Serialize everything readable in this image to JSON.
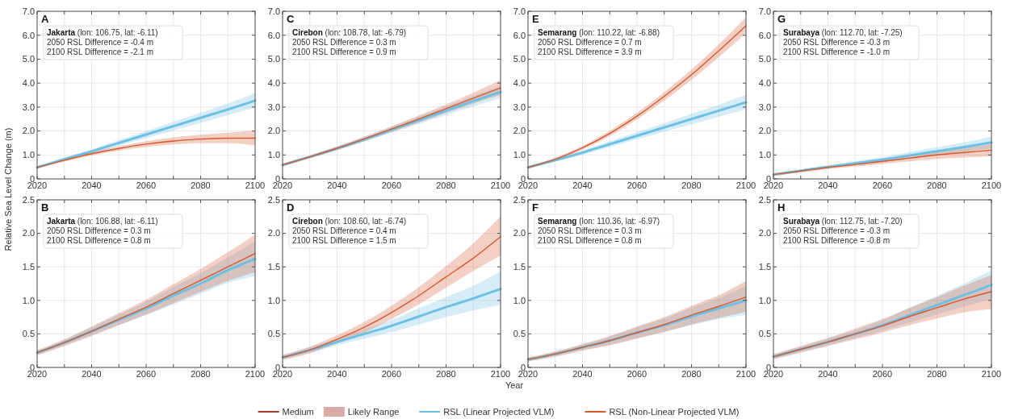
{
  "chart_data": [
    {
      "type": "line",
      "title": "A",
      "ylabel": "Relative Sea Level Change (m)",
      "legend": "bottom",
      "grid": true,
      "line_style": "solid",
      "x": [
        2020,
        2030,
        2040,
        2050,
        2060,
        2070,
        2080,
        2090,
        2100
      ],
      "xlim": [
        2020,
        2100
      ],
      "xticks": [
        2020,
        {
          "value": 2030,
          "label": null
        },
        2040,
        {
          "value": 2050,
          "label": null
        },
        2060,
        {
          "value": 2070,
          "label": null
        },
        2080,
        {
          "value": 2090,
          "label": null
        },
        2100
      ],
      "ylim": [
        0,
        7
      ],
      "yticks": [
        0,
        {
          "value": 1,
          "label": "1.0"
        },
        {
          "value": 2,
          "label": "2.0"
        },
        {
          "value": 3,
          "label": "3.0"
        },
        {
          "value": 4,
          "label": "4.0"
        },
        {
          "value": 5,
          "label": "5.0"
        },
        {
          "value": 6,
          "label": "6.0"
        },
        {
          "value": 7,
          "label": "7.0"
        }
      ],
      "annotations": [
        "Jakarta (lon: 106.75, lat: -6.11)",
        "2050 RSL Difference = -0.4 m",
        "2100 RSL Difference = -2.1 m",
        "Medium",
        "Likely Range"
      ],
      "series": [
        {
          "name": "RSL (Linear Projected VLM)",
          "color": "#6cc0e5",
          "values": [
            0.48,
            0.82,
            1.15,
            1.5,
            1.85,
            2.2,
            2.55,
            2.9,
            3.27
          ],
          "lower": [
            0.44,
            0.75,
            1.06,
            1.38,
            1.7,
            2.02,
            2.34,
            2.66,
            2.98
          ],
          "upper": [
            0.52,
            0.89,
            1.24,
            1.62,
            2.0,
            2.38,
            2.76,
            3.15,
            3.58
          ]
        },
        {
          "name": "RSL (Non-Linear Projected VLM)",
          "color": "#d9572b",
          "values": [
            0.48,
            0.78,
            1.05,
            1.27,
            1.45,
            1.58,
            1.66,
            1.7,
            1.7
          ],
          "lower": [
            0.43,
            0.72,
            0.98,
            1.18,
            1.33,
            1.44,
            1.49,
            1.49,
            1.4
          ],
          "upper": [
            0.53,
            0.84,
            1.12,
            1.36,
            1.57,
            1.73,
            1.84,
            1.93,
            2.02
          ]
        }
      ]
    },
    {
      "type": "line",
      "title": "C",
      "grid": true,
      "line_style": "solid",
      "x": [
        2020,
        2030,
        2040,
        2050,
        2060,
        2070,
        2080,
        2090,
        2100
      ],
      "xlim": [
        2020,
        2100
      ],
      "xticks": [
        2020,
        {
          "value": 2030,
          "label": null
        },
        2040,
        {
          "value": 2050,
          "label": null
        },
        2060,
        {
          "value": 2070,
          "label": null
        },
        2080,
        {
          "value": 2090,
          "label": null
        },
        2100
      ],
      "ylim": [
        0,
        7
      ],
      "yticks": [
        0,
        {
          "value": 1,
          "label": "1.0"
        },
        {
          "value": 2,
          "label": "2.0"
        },
        {
          "value": 3,
          "label": "3.0"
        },
        {
          "value": 4,
          "label": "4.0"
        },
        {
          "value": 5,
          "label": "5.0"
        },
        {
          "value": 6,
          "label": "6.0"
        },
        {
          "value": 7,
          "label": "7.0"
        }
      ],
      "annotations": [
        "Cirebon (lon: 108.78, lat: -6.79)",
        "2050 RSL Difference = 0.3 m",
        "2100 RSL Difference = 0.9 m"
      ],
      "series": [
        {
          "color": "#6cc0e5",
          "values": [
            0.58,
            0.92,
            1.27,
            1.65,
            2.05,
            2.45,
            2.85,
            3.25,
            3.63
          ],
          "lower": [
            0.55,
            0.87,
            1.2,
            1.56,
            1.93,
            2.3,
            2.67,
            3.03,
            3.38
          ],
          "upper": [
            0.61,
            0.97,
            1.34,
            1.74,
            2.17,
            2.6,
            3.03,
            3.47,
            3.88
          ]
        },
        {
          "color": "#d9572b",
          "values": [
            0.58,
            0.92,
            1.28,
            1.67,
            2.08,
            2.5,
            2.93,
            3.37,
            3.8
          ],
          "lower": [
            0.53,
            0.86,
            1.2,
            1.57,
            1.96,
            2.35,
            2.75,
            3.15,
            3.5
          ],
          "upper": [
            0.63,
            0.98,
            1.36,
            1.77,
            2.2,
            2.65,
            3.11,
            3.6,
            4.12
          ]
        }
      ]
    },
    {
      "type": "line",
      "title": "E",
      "grid": true,
      "line_style": "solid",
      "x": [
        2020,
        2030,
        2040,
        2050,
        2060,
        2070,
        2080,
        2090,
        2100
      ],
      "xlim": [
        2020,
        2100
      ],
      "xticks": [
        2020,
        {
          "value": 2030,
          "label": null
        },
        2040,
        {
          "value": 2050,
          "label": null
        },
        2060,
        {
          "value": 2070,
          "label": null
        },
        2080,
        {
          "value": 2090,
          "label": null
        },
        2100
      ],
      "ylim": [
        0,
        7
      ],
      "yticks": [
        0,
        {
          "value": 1,
          "label": "1.0"
        },
        {
          "value": 2,
          "label": "2.0"
        },
        {
          "value": 3,
          "label": "3.0"
        },
        {
          "value": 4,
          "label": "4.0"
        },
        {
          "value": 5,
          "label": "5.0"
        },
        {
          "value": 6,
          "label": "6.0"
        },
        {
          "value": 7,
          "label": "7.0"
        }
      ],
      "annotations": [
        "Semarang (lon: 110.22, lat: -6.88)",
        "2050 RSL Difference = 0.7 m",
        "2100 RSL Difference = 3.9 m"
      ],
      "series": [
        {
          "color": "#6cc0e5",
          "values": [
            0.48,
            0.78,
            1.1,
            1.45,
            1.8,
            2.15,
            2.5,
            2.85,
            3.2
          ],
          "lower": [
            0.45,
            0.72,
            1.01,
            1.33,
            1.65,
            1.97,
            2.28,
            2.6,
            2.9
          ],
          "upper": [
            0.51,
            0.84,
            1.19,
            1.57,
            1.95,
            2.33,
            2.72,
            3.1,
            3.52
          ]
        },
        {
          "color": "#d9572b",
          "values": [
            0.48,
            0.82,
            1.3,
            1.9,
            2.62,
            3.45,
            4.35,
            5.35,
            6.4
          ],
          "lower": [
            0.43,
            0.76,
            1.22,
            1.79,
            2.48,
            3.27,
            4.13,
            5.08,
            6.08
          ],
          "upper": [
            0.53,
            0.88,
            1.38,
            2.01,
            2.76,
            3.63,
            4.57,
            5.62,
            6.75
          ]
        }
      ]
    },
    {
      "type": "line",
      "title": "G",
      "grid": true,
      "line_style": "solid",
      "x": [
        2020,
        2030,
        2040,
        2050,
        2060,
        2070,
        2080,
        2090,
        2100
      ],
      "xlim": [
        2020,
        2100
      ],
      "xticks": [
        2020,
        {
          "value": 2030,
          "label": null
        },
        2040,
        {
          "value": 2050,
          "label": null
        },
        2060,
        {
          "value": 2070,
          "label": null
        },
        2080,
        {
          "value": 2090,
          "label": null
        },
        2100
      ],
      "ylim": [
        0,
        7
      ],
      "yticks": [
        0,
        {
          "value": 1,
          "label": "1.0"
        },
        {
          "value": 2,
          "label": "2.0"
        },
        {
          "value": 3,
          "label": "3.0"
        },
        {
          "value": 4,
          "label": "4.0"
        },
        {
          "value": 5,
          "label": "5.0"
        },
        {
          "value": 6,
          "label": "6.0"
        },
        {
          "value": 7,
          "label": "7.0"
        }
      ],
      "annotations": [
        "Surabaya (lon: 112.70, lat: -7.25)",
        "2050 RSL Difference = -0.3 m",
        "2100 RSL Difference = -1.0 m"
      ],
      "series": [
        {
          "color": "#6cc0e5",
          "values": [
            0.18,
            0.34,
            0.5,
            0.65,
            0.8,
            0.98,
            1.15,
            1.33,
            1.52
          ],
          "lower": [
            0.15,
            0.29,
            0.43,
            0.56,
            0.69,
            0.84,
            0.98,
            1.13,
            1.27
          ],
          "upper": [
            0.21,
            0.39,
            0.57,
            0.74,
            0.91,
            1.12,
            1.32,
            1.53,
            1.77
          ]
        },
        {
          "color": "#d9572b",
          "values": [
            0.18,
            0.33,
            0.48,
            0.6,
            0.73,
            0.87,
            1.0,
            1.1,
            1.2
          ],
          "lower": [
            0.13,
            0.27,
            0.41,
            0.51,
            0.62,
            0.73,
            0.83,
            0.89,
            0.95
          ],
          "upper": [
            0.23,
            0.39,
            0.55,
            0.69,
            0.84,
            1.01,
            1.17,
            1.31,
            1.45
          ]
        }
      ]
    },
    {
      "type": "line",
      "title": "B",
      "grid": true,
      "line_style": "solid",
      "x": [
        2020,
        2030,
        2040,
        2050,
        2060,
        2070,
        2080,
        2090,
        2100
      ],
      "xlim": [
        2020,
        2100
      ],
      "xticks": [
        2020,
        {
          "value": 2030,
          "label": null
        },
        2040,
        {
          "value": 2050,
          "label": null
        },
        2060,
        {
          "value": 2070,
          "label": null
        },
        2080,
        {
          "value": 2090,
          "label": null
        },
        2100
      ],
      "ylim": [
        0,
        2.5
      ],
      "yticks": [
        0,
        0.5,
        {
          "value": 1,
          "label": "1.0"
        },
        1.5,
        {
          "value": 2,
          "label": "2.0"
        },
        2.5
      ],
      "annotations": [
        "Jakarta (lon: 106.88, lat: -6.11)",
        "2050 RSL Difference = 0.3 m",
        "2100 RSL Difference = 0.8 m"
      ],
      "series": [
        {
          "color": "#6cc0e5",
          "values": [
            0.22,
            0.37,
            0.54,
            0.71,
            0.88,
            1.07,
            1.25,
            1.45,
            1.62
          ],
          "lower": [
            0.19,
            0.33,
            0.48,
            0.63,
            0.78,
            0.94,
            1.1,
            1.26,
            1.36
          ],
          "upper": [
            0.25,
            0.41,
            0.6,
            0.79,
            0.98,
            1.2,
            1.41,
            1.64,
            1.88
          ]
        },
        {
          "color": "#d9572b",
          "values": [
            0.22,
            0.37,
            0.54,
            0.72,
            0.9,
            1.1,
            1.3,
            1.5,
            1.7
          ],
          "lower": [
            0.18,
            0.32,
            0.47,
            0.63,
            0.79,
            0.96,
            1.13,
            1.29,
            1.42
          ],
          "upper": [
            0.26,
            0.42,
            0.61,
            0.81,
            1.01,
            1.24,
            1.47,
            1.72,
            1.98
          ]
        }
      ]
    },
    {
      "type": "line",
      "title": "D",
      "xlabel": "Year",
      "grid": true,
      "line_style": "solid",
      "x": [
        2020,
        2030,
        2040,
        2050,
        2060,
        2070,
        2080,
        2090,
        2100
      ],
      "xlim": [
        2020,
        2100
      ],
      "xticks": [
        2020,
        {
          "value": 2030,
          "label": null
        },
        2040,
        {
          "value": 2050,
          "label": null
        },
        2060,
        {
          "value": 2070,
          "label": null
        },
        2080,
        {
          "value": 2090,
          "label": null
        },
        2100
      ],
      "ylim": [
        0,
        2.5
      ],
      "yticks": [
        0,
        0.5,
        {
          "value": 1,
          "label": "1.0"
        },
        1.5,
        {
          "value": 2,
          "label": "2.0"
        },
        2.5
      ],
      "annotations": [
        "Cirebon (lon: 108.60, lat: -6.74)",
        "2050 RSL Difference = 0.4 m",
        "2100 RSL Difference = 1.5 m"
      ],
      "series": [
        {
          "color": "#6cc0e5",
          "values": [
            0.15,
            0.26,
            0.38,
            0.5,
            0.62,
            0.76,
            0.9,
            1.03,
            1.17
          ],
          "lower": [
            0.12,
            0.22,
            0.33,
            0.43,
            0.53,
            0.64,
            0.75,
            0.85,
            0.93
          ],
          "upper": [
            0.18,
            0.3,
            0.43,
            0.57,
            0.71,
            0.88,
            1.05,
            1.22,
            1.43
          ]
        },
        {
          "color": "#d9572b",
          "values": [
            0.15,
            0.26,
            0.42,
            0.6,
            0.82,
            1.07,
            1.35,
            1.63,
            1.95
          ],
          "lower": [
            0.11,
            0.21,
            0.36,
            0.52,
            0.72,
            0.94,
            1.19,
            1.44,
            1.67
          ],
          "upper": [
            0.19,
            0.31,
            0.48,
            0.68,
            0.92,
            1.2,
            1.51,
            1.85,
            2.25
          ]
        }
      ]
    },
    {
      "type": "line",
      "title": "F",
      "grid": true,
      "line_style": "solid",
      "x": [
        2020,
        2030,
        2040,
        2050,
        2060,
        2070,
        2080,
        2090,
        2100
      ],
      "xlim": [
        2020,
        2100
      ],
      "xticks": [
        2020,
        {
          "value": 2030,
          "label": null
        },
        2040,
        {
          "value": 2050,
          "label": null
        },
        2060,
        {
          "value": 2070,
          "label": null
        },
        2080,
        {
          "value": 2090,
          "label": null
        },
        2100
      ],
      "ylim": [
        0,
        2.5
      ],
      "yticks": [
        0,
        0.5,
        {
          "value": 1,
          "label": "1.0"
        },
        1.5,
        {
          "value": 2,
          "label": "2.0"
        },
        2.5
      ],
      "annotations": [
        "Semarang (lon: 110.36, lat: -6.97)",
        "2050 RSL Difference = 0.3 m",
        "2100 RSL Difference = 0.8 m"
      ],
      "series": [
        {
          "color": "#6cc0e5",
          "values": [
            0.12,
            0.2,
            0.3,
            0.4,
            0.52,
            0.63,
            0.76,
            0.88,
            1.0
          ],
          "lower": [
            0.1,
            0.17,
            0.26,
            0.34,
            0.44,
            0.53,
            0.63,
            0.72,
            0.78
          ],
          "upper": [
            0.14,
            0.23,
            0.34,
            0.46,
            0.6,
            0.73,
            0.89,
            1.04,
            1.22
          ]
        },
        {
          "color": "#d9572b",
          "values": [
            0.12,
            0.2,
            0.3,
            0.4,
            0.52,
            0.64,
            0.78,
            0.91,
            1.05
          ],
          "lower": [
            0.09,
            0.16,
            0.25,
            0.33,
            0.43,
            0.53,
            0.64,
            0.74,
            0.83
          ],
          "upper": [
            0.15,
            0.24,
            0.35,
            0.47,
            0.61,
            0.75,
            0.92,
            1.08,
            1.29
          ]
        }
      ]
    },
    {
      "type": "line",
      "title": "H",
      "grid": true,
      "line_style": "solid",
      "x": [
        2020,
        2030,
        2040,
        2050,
        2060,
        2070,
        2080,
        2090,
        2100
      ],
      "xlim": [
        2020,
        2100
      ],
      "xticks": [
        2020,
        {
          "value": 2030,
          "label": null
        },
        2040,
        {
          "value": 2050,
          "label": null
        },
        2060,
        {
          "value": 2070,
          "label": null
        },
        2080,
        {
          "value": 2090,
          "label": null
        },
        2100
      ],
      "ylim": [
        0,
        2.5
      ],
      "yticks": [
        0,
        0.5,
        {
          "value": 1,
          "label": "1.0"
        },
        1.5,
        {
          "value": 2,
          "label": "2.0"
        },
        2.5
      ],
      "annotations": [
        "Surabaya (lon: 112.75, lat: -7.20)",
        "2050 RSL Difference = -0.3 m",
        "2100 RSL Difference = -0.8 m"
      ],
      "series": [
        {
          "color": "#6cc0e5",
          "values": [
            0.16,
            0.27,
            0.38,
            0.5,
            0.63,
            0.78,
            0.93,
            1.08,
            1.23
          ],
          "lower": [
            0.13,
            0.23,
            0.33,
            0.44,
            0.55,
            0.67,
            0.79,
            0.91,
            1.02
          ],
          "upper": [
            0.19,
            0.31,
            0.43,
            0.56,
            0.71,
            0.89,
            1.07,
            1.25,
            1.45
          ]
        },
        {
          "color": "#d9572b",
          "values": [
            0.16,
            0.27,
            0.38,
            0.5,
            0.62,
            0.76,
            0.89,
            1.02,
            1.13
          ],
          "lower": [
            0.12,
            0.22,
            0.32,
            0.42,
            0.52,
            0.63,
            0.73,
            0.82,
            0.87
          ],
          "upper": [
            0.2,
            0.32,
            0.44,
            0.58,
            0.72,
            0.89,
            1.05,
            1.22,
            1.38
          ]
        }
      ]
    }
  ]
}
